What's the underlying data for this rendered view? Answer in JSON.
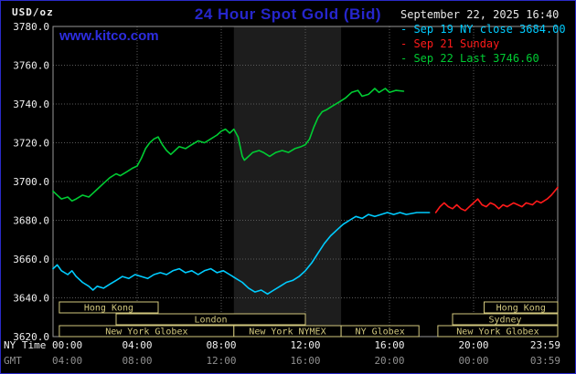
{
  "header": {
    "units_label": "USD/oz",
    "title": "24 Hour Spot Gold (Bid)",
    "datetime": "September 22, 2025 16:40",
    "watermark": "www.kitco.com"
  },
  "legend": {
    "items": [
      {
        "marker": "-",
        "label": "Sep 19 NY close 3684.00",
        "color": "#00ccff"
      },
      {
        "marker": "-",
        "label": "Sep 21 Sunday",
        "color": "#ff1a1a"
      },
      {
        "marker": "-",
        "label": "Sep 22 Last 3746.60",
        "color": "#00cc33"
      }
    ]
  },
  "axes": {
    "x_axis_primary_label": "NY Time",
    "x_axis_secondary_label": "GMT",
    "x_ticks": [
      {
        "hour": 0,
        "ny": "00:00",
        "gmt": "04:00"
      },
      {
        "hour": 4,
        "ny": "04:00",
        "gmt": "08:00"
      },
      {
        "hour": 8,
        "ny": "08:00",
        "gmt": "12:00"
      },
      {
        "hour": 12,
        "ny": "12:00",
        "gmt": "16:00"
      },
      {
        "hour": 16,
        "ny": "16:00",
        "gmt": "20:00"
      },
      {
        "hour": 20,
        "ny": "20:00",
        "gmt": "00:00"
      },
      {
        "hour": 24,
        "ny": "23:59",
        "gmt": "03:59"
      }
    ],
    "y_ticks": [
      "3780.0",
      "3760.0",
      "3740.0",
      "3720.0",
      "3700.0",
      "3680.0",
      "3660.0",
      "3640.0",
      "3620.0"
    ]
  },
  "chart_data": {
    "type": "line",
    "title": "24 Hour Spot Gold (Bid)",
    "ylabel": "USD/oz",
    "x_unit": "NY time, hours",
    "xlim": [
      0,
      24
    ],
    "ylim": [
      3620,
      3780
    ],
    "y_gridline_step": 20,
    "grid": true,
    "nymex_session_band_hours": [
      8.6,
      13.7
    ],
    "series": [
      {
        "name": "Sep 19 NY close",
        "close": 3684.0,
        "color": "#00ccff",
        "points": [
          [
            0,
            3655
          ],
          [
            0.2,
            3657
          ],
          [
            0.4,
            3654
          ],
          [
            0.7,
            3652
          ],
          [
            0.9,
            3654
          ],
          [
            1.1,
            3651
          ],
          [
            1.4,
            3648
          ],
          [
            1.7,
            3646
          ],
          [
            1.9,
            3644
          ],
          [
            2.1,
            3646
          ],
          [
            2.4,
            3645
          ],
          [
            2.7,
            3647
          ],
          [
            3,
            3649
          ],
          [
            3.3,
            3651
          ],
          [
            3.6,
            3650
          ],
          [
            3.9,
            3652
          ],
          [
            4.2,
            3651
          ],
          [
            4.5,
            3650
          ],
          [
            4.8,
            3652
          ],
          [
            5.1,
            3653
          ],
          [
            5.4,
            3652
          ],
          [
            5.7,
            3654
          ],
          [
            6,
            3655
          ],
          [
            6.3,
            3653
          ],
          [
            6.6,
            3654
          ],
          [
            6.9,
            3652
          ],
          [
            7.2,
            3654
          ],
          [
            7.5,
            3655
          ],
          [
            7.8,
            3653
          ],
          [
            8.1,
            3654
          ],
          [
            8.4,
            3652
          ],
          [
            8.7,
            3650
          ],
          [
            9,
            3648
          ],
          [
            9.3,
            3645
          ],
          [
            9.6,
            3643
          ],
          [
            9.9,
            3644
          ],
          [
            10.2,
            3642
          ],
          [
            10.5,
            3644
          ],
          [
            10.8,
            3646
          ],
          [
            11.1,
            3648
          ],
          [
            11.4,
            3649
          ],
          [
            11.7,
            3651
          ],
          [
            12,
            3654
          ],
          [
            12.3,
            3658
          ],
          [
            12.6,
            3663
          ],
          [
            12.9,
            3668
          ],
          [
            13.2,
            3672
          ],
          [
            13.5,
            3675
          ],
          [
            13.8,
            3678
          ],
          [
            14.1,
            3680
          ],
          [
            14.4,
            3682
          ],
          [
            14.7,
            3681
          ],
          [
            15,
            3683
          ],
          [
            15.3,
            3682
          ],
          [
            15.6,
            3683
          ],
          [
            15.9,
            3684
          ],
          [
            16.2,
            3683
          ],
          [
            16.5,
            3684
          ],
          [
            16.8,
            3683
          ],
          [
            17.3,
            3684
          ],
          [
            17.9,
            3684
          ]
        ]
      },
      {
        "name": "Sep 21 Sunday",
        "color": "#ff1a1a",
        "points": [
          [
            18.2,
            3684
          ],
          [
            18.4,
            3687
          ],
          [
            18.6,
            3689
          ],
          [
            18.8,
            3687
          ],
          [
            19,
            3686
          ],
          [
            19.2,
            3688
          ],
          [
            19.4,
            3686
          ],
          [
            19.6,
            3685
          ],
          [
            19.8,
            3687
          ],
          [
            20,
            3689
          ],
          [
            20.2,
            3691
          ],
          [
            20.4,
            3688
          ],
          [
            20.6,
            3687
          ],
          [
            20.8,
            3689
          ],
          [
            21,
            3688
          ],
          [
            21.2,
            3686
          ],
          [
            21.4,
            3688
          ],
          [
            21.6,
            3687
          ],
          [
            21.9,
            3689
          ],
          [
            22.1,
            3688
          ],
          [
            22.3,
            3687
          ],
          [
            22.5,
            3689
          ],
          [
            22.8,
            3688
          ],
          [
            23,
            3690
          ],
          [
            23.2,
            3689
          ],
          [
            23.5,
            3691
          ],
          [
            23.7,
            3693
          ],
          [
            23.85,
            3695
          ],
          [
            24,
            3697
          ]
        ]
      },
      {
        "name": "Sep 22",
        "last": 3746.6,
        "last_time": "16:40",
        "color": "#00cc33",
        "points": [
          [
            0,
            3695
          ],
          [
            0.2,
            3693
          ],
          [
            0.4,
            3691
          ],
          [
            0.7,
            3692
          ],
          [
            0.9,
            3690
          ],
          [
            1.1,
            3691
          ],
          [
            1.4,
            3693
          ],
          [
            1.7,
            3692
          ],
          [
            1.9,
            3694
          ],
          [
            2.1,
            3696
          ],
          [
            2.4,
            3699
          ],
          [
            2.7,
            3702
          ],
          [
            3,
            3704
          ],
          [
            3.2,
            3703
          ],
          [
            3.5,
            3705
          ],
          [
            3.8,
            3707
          ],
          [
            4,
            3708
          ],
          [
            4.2,
            3712
          ],
          [
            4.4,
            3717
          ],
          [
            4.6,
            3720
          ],
          [
            4.8,
            3722
          ],
          [
            5,
            3723
          ],
          [
            5.2,
            3719
          ],
          [
            5.4,
            3716
          ],
          [
            5.6,
            3714
          ],
          [
            5.8,
            3716
          ],
          [
            6,
            3718
          ],
          [
            6.3,
            3717
          ],
          [
            6.6,
            3719
          ],
          [
            6.9,
            3721
          ],
          [
            7.2,
            3720
          ],
          [
            7.5,
            3722
          ],
          [
            7.8,
            3724
          ],
          [
            8,
            3726
          ],
          [
            8.2,
            3727
          ],
          [
            8.4,
            3725
          ],
          [
            8.6,
            3727
          ],
          [
            8.8,
            3723
          ],
          [
            9,
            3713
          ],
          [
            9.1,
            3711
          ],
          [
            9.3,
            3713
          ],
          [
            9.5,
            3715
          ],
          [
            9.8,
            3716
          ],
          [
            10,
            3715
          ],
          [
            10.3,
            3713
          ],
          [
            10.6,
            3715
          ],
          [
            10.9,
            3716
          ],
          [
            11.2,
            3715
          ],
          [
            11.5,
            3717
          ],
          [
            11.8,
            3718
          ],
          [
            12,
            3719
          ],
          [
            12.2,
            3722
          ],
          [
            12.4,
            3728
          ],
          [
            12.6,
            3733
          ],
          [
            12.8,
            3736
          ],
          [
            13,
            3737
          ],
          [
            13.3,
            3739
          ],
          [
            13.6,
            3741
          ],
          [
            13.9,
            3743
          ],
          [
            14.2,
            3746
          ],
          [
            14.5,
            3747
          ],
          [
            14.7,
            3744
          ],
          [
            15,
            3745
          ],
          [
            15.3,
            3748
          ],
          [
            15.5,
            3746
          ],
          [
            15.8,
            3748
          ],
          [
            16,
            3746
          ],
          [
            16.3,
            3747
          ],
          [
            16.67,
            3746.6
          ]
        ]
      }
    ]
  },
  "sessions": {
    "box_color": "#d2c87e",
    "rows": [
      [
        {
          "label": "Hong Kong",
          "start": 0.3,
          "end": 5.0
        },
        {
          "label": "Hong Kong",
          "start": 20.5,
          "end": 24
        }
      ],
      [
        {
          "label": "London",
          "start": 3.0,
          "end": 12.0
        },
        {
          "label": "Sydney",
          "start": 19.0,
          "end": 24
        }
      ],
      [
        {
          "label": "New York Globex",
          "start": 0.3,
          "end": 8.6
        },
        {
          "label": "New York NYMEX",
          "start": 8.6,
          "end": 13.7
        },
        {
          "label": "NY Globex",
          "start": 13.7,
          "end": 17.4
        },
        {
          "label": "New York Globex",
          "start": 18.3,
          "end": 24
        }
      ]
    ]
  },
  "colors": {
    "background": "#000000",
    "chart_border": "#2a2ac8",
    "frame": "#999999",
    "grid": "#5a5a5a",
    "band": "#1d1d1d",
    "title": "#2626cc",
    "watermark": "#2d2de0",
    "date_text": "#e8e8e8",
    "axis_text": "#f0f0f0",
    "gmt_text": "#909090"
  }
}
